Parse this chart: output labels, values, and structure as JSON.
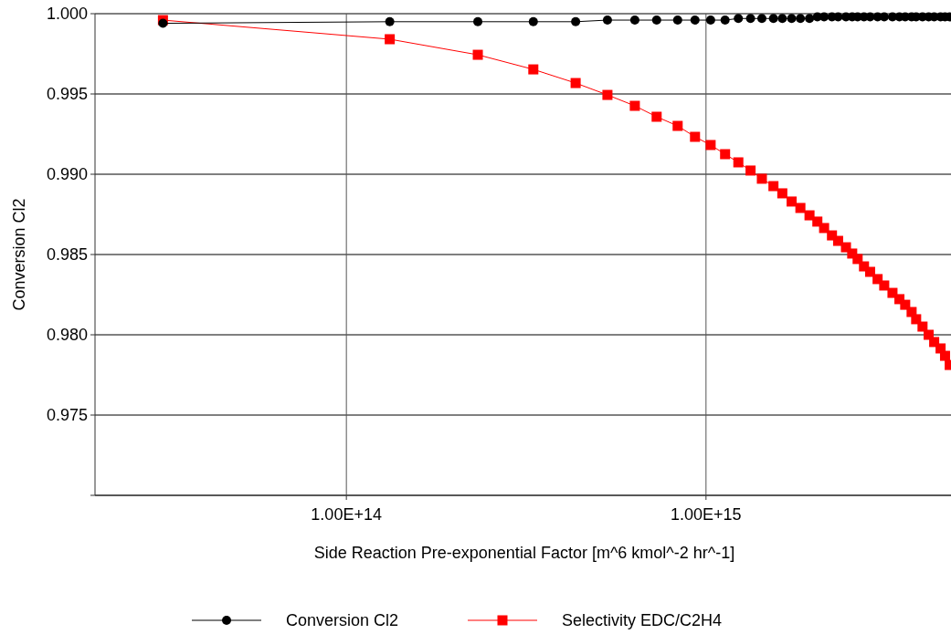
{
  "chart_data": {
    "type": "line",
    "xlabel": "Side Reaction Pre-exponential Factor [m^6 kmol^-2 hr^-1]",
    "ylabel": "Conversion Cl2",
    "log": "x",
    "grid": true,
    "legend": "bottom",
    "line_style": "solid",
    "xlim": [
      20000000000000.0,
      4800000000000000.0
    ],
    "xticks": [
      {
        "value": 100000000000000.0,
        "label": "1.00E+14"
      },
      {
        "value": 1000000000000000.0,
        "label": "1.00E+15"
      }
    ],
    "ylim": [
      0.97,
      1.0
    ],
    "yticks": [
      {
        "value": 0.97,
        "label": null
      },
      {
        "value": 0.975,
        "label": "0.975"
      },
      {
        "value": 0.98,
        "label": "0.980"
      },
      {
        "value": 0.985,
        "label": "0.985"
      },
      {
        "value": 0.99,
        "label": "0.990"
      },
      {
        "value": 0.995,
        "label": "0.995"
      },
      {
        "value": 1.0,
        "label": "1.000"
      }
    ],
    "x": [
      30900000000000.0,
      132000000000000.0,
      232000000000000.0,
      331000000000000.0,
      434000000000000.0,
      532000000000000.0,
      634000000000000.0,
      729000000000000.0,
      834000000000000.0,
      932000000000000.0,
      1030000000000000.0,
      1130000000000000.0,
      1230000000000000.0,
      1330000000000000.0,
      1430000000000000.0,
      1540000000000000.0,
      1630000000000000.0,
      1730000000000000.0,
      1830000000000000.0,
      1940000000000000.0,
      2040000000000000.0,
      2130000000000000.0,
      2240000000000000.0,
      2330000000000000.0,
      2450000000000000.0,
      2550000000000000.0,
      2640000000000000.0,
      2750000000000000.0,
      2860000000000000.0,
      3000000000000000.0,
      3130000000000000.0,
      3300000000000000.0,
      3450000000000000.0,
      3580000000000000.0,
      3730000000000000.0,
      3840000000000000.0,
      4000000000000000.0,
      4160000000000000.0,
      4310000000000000.0,
      4490000000000000.0,
      4620000000000000.0,
      4760000000000000.0
    ],
    "series": [
      {
        "name": "Conversion Cl2",
        "color": "#000000",
        "marker": "circle",
        "values": [
          0.9994,
          0.9995,
          0.9995,
          0.9995,
          0.9995,
          0.9996,
          0.9996,
          0.9996,
          0.9996,
          0.9996,
          0.9996,
          0.9996,
          0.9997,
          0.9997,
          0.9997,
          0.9997,
          0.9997,
          0.9997,
          0.9997,
          0.9997,
          0.9998,
          0.9998,
          0.9998,
          0.9998,
          0.9998,
          0.9998,
          0.9998,
          0.9998,
          0.9998,
          0.9998,
          0.9998,
          0.9998,
          0.9998,
          0.9998,
          0.9998,
          0.9998,
          0.9998,
          0.9998,
          0.9998,
          0.9998,
          0.9998,
          0.9998
        ]
      },
      {
        "name": "Selectivity EDC/C2H4",
        "color": "#ff0000",
        "marker": "square",
        "values": [
          0.9996,
          0.99841,
          0.99744,
          0.99653,
          0.99568,
          0.99494,
          0.99426,
          0.99358,
          0.99301,
          0.99233,
          0.99182,
          0.99125,
          0.99074,
          0.99023,
          0.98972,
          0.98926,
          0.98881,
          0.9883,
          0.9879,
          0.98744,
          0.98705,
          0.98665,
          0.98619,
          0.98585,
          0.98545,
          0.98506,
          0.98472,
          0.98426,
          0.98392,
          0.98347,
          0.98307,
          0.98261,
          0.98222,
          0.98187,
          0.98142,
          0.98097,
          0.98051,
          0.98,
          0.97955,
          0.97915,
          0.97869,
          0.97812
        ]
      }
    ]
  }
}
